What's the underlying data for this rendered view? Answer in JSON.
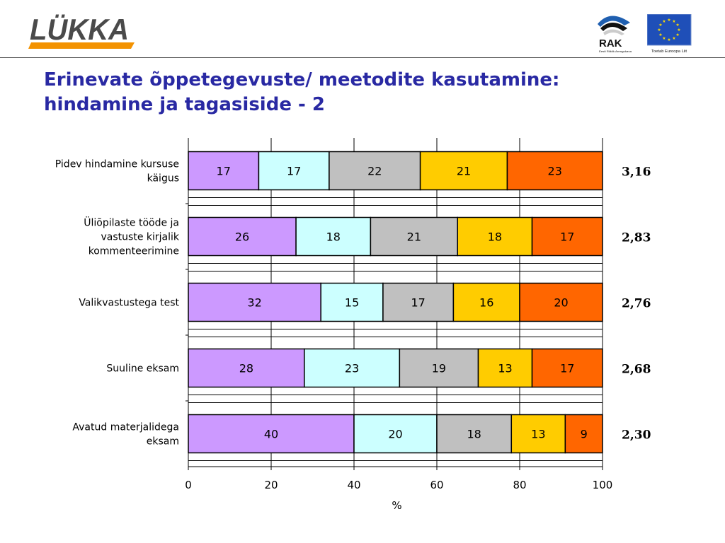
{
  "header": {
    "brand_logo": "LÜKKA",
    "rak_logo": {
      "name": "RAK",
      "tagline": "Eesti Riiklik Arengukava"
    },
    "eu_logo": {
      "caption": "Toetab Euroopa Liit"
    }
  },
  "title": {
    "line1": "Erinevate õppetegevuste/ meetodite kasutamine:",
    "line2": "hindamine ja tagasiside - 2"
  },
  "colors": {
    "title": "#2929a3",
    "segments": [
      "#cc99ff",
      "#ccffff",
      "#c0c0c0",
      "#ffcc00",
      "#ff6600"
    ],
    "accent_orange": "#f39200"
  },
  "chart_data": {
    "type": "bar",
    "orientation": "horizontal",
    "stacked": true,
    "categories": [
      [
        "Pidev hindamine kursuse",
        "käigus"
      ],
      [
        "Üliõpilaste tööde ja",
        "vastuste kirjalik",
        "kommenteerimine"
      ],
      [
        "Valikvastustega test"
      ],
      [
        "Suuline eksam"
      ],
      [
        "Avatud materjalidega",
        "eksam"
      ]
    ],
    "series": [
      {
        "values": [
          17,
          26,
          32,
          28,
          40
        ]
      },
      {
        "values": [
          17,
          18,
          15,
          23,
          20
        ]
      },
      {
        "values": [
          22,
          21,
          17,
          19,
          18
        ]
      },
      {
        "values": [
          21,
          18,
          16,
          13,
          13
        ]
      },
      {
        "values": [
          23,
          17,
          20,
          17,
          9
        ]
      }
    ],
    "scores": [
      "3,16",
      "2,83",
      "2,76",
      "2,68",
      "2,30"
    ],
    "xlabel": "%",
    "ylabel": "",
    "xlim": [
      0,
      100
    ],
    "xticks": [
      0,
      20,
      40,
      60,
      80,
      100
    ],
    "grid": true,
    "legend": "none"
  }
}
